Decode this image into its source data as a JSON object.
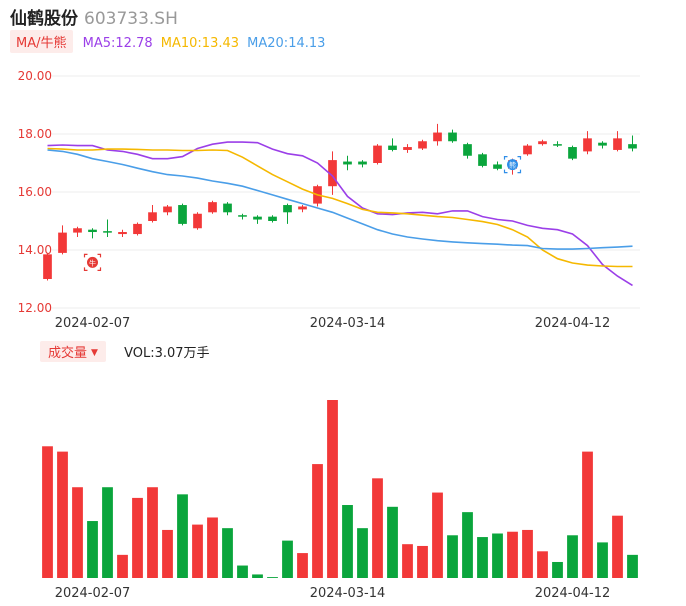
{
  "header": {
    "name": "仙鹤股份",
    "code": "603733.SH"
  },
  "ma_legend": {
    "toggle_label": "MA/牛熊",
    "items": [
      {
        "text": "MA5:12.78",
        "color": "#9b3fe8"
      },
      {
        "text": "MA10:13.43",
        "color": "#f5b800"
      },
      {
        "text": "MA20:14.13",
        "color": "#4a9ee8"
      }
    ]
  },
  "volume_legend": {
    "toggle_label": "成交量",
    "caret": "▼",
    "text": "VOL:3.07万手"
  },
  "colors": {
    "up": "#f23838",
    "down": "#0aa53c",
    "grid": "#eeeeee",
    "axis_text": "#e53935",
    "date_text": "#333333"
  },
  "markers": [
    {
      "icon": "red-seal-marker-icon",
      "label": "牛",
      "index": 3,
      "color": "#e53935"
    },
    {
      "icon": "blue-seal-marker-icon",
      "label": "熊",
      "index": 31,
      "color": "#2f8ee8"
    }
  ],
  "chart_data": {
    "type": "candlestick",
    "price_axis": {
      "ylim": [
        12,
        20
      ],
      "ticks": [
        "12.00",
        "14.00",
        "16.00",
        "18.00",
        "20.00"
      ]
    },
    "date_ticks": [
      {
        "label": "2024-02-07",
        "index": 3
      },
      {
        "label": "2024-03-14",
        "index": 20
      },
      {
        "label": "2024-04-12",
        "index": 35
      }
    ],
    "candles": [
      {
        "o": 13.0,
        "c": 13.85,
        "h": 13.9,
        "l": 12.95
      },
      {
        "o": 13.9,
        "c": 14.6,
        "h": 14.85,
        "l": 13.85
      },
      {
        "o": 14.6,
        "c": 14.75,
        "h": 14.8,
        "l": 14.45
      },
      {
        "o": 14.7,
        "c": 14.62,
        "h": 14.75,
        "l": 14.4
      },
      {
        "o": 14.65,
        "c": 14.62,
        "h": 15.05,
        "l": 14.45
      },
      {
        "o": 14.55,
        "c": 14.62,
        "h": 14.7,
        "l": 14.45
      },
      {
        "o": 14.55,
        "c": 14.9,
        "h": 14.95,
        "l": 14.5
      },
      {
        "o": 15.0,
        "c": 15.3,
        "h": 15.55,
        "l": 14.95
      },
      {
        "o": 15.3,
        "c": 15.5,
        "h": 15.55,
        "l": 15.2
      },
      {
        "o": 15.55,
        "c": 14.9,
        "h": 15.6,
        "l": 14.85
      },
      {
        "o": 14.75,
        "c": 15.25,
        "h": 15.3,
        "l": 14.7
      },
      {
        "o": 15.3,
        "c": 15.65,
        "h": 15.7,
        "l": 15.25
      },
      {
        "o": 15.6,
        "c": 15.3,
        "h": 15.65,
        "l": 15.2
      },
      {
        "o": 15.2,
        "c": 15.15,
        "h": 15.25,
        "l": 15.05
      },
      {
        "o": 15.15,
        "c": 15.05,
        "h": 15.2,
        "l": 14.9
      },
      {
        "o": 15.15,
        "c": 15.0,
        "h": 15.2,
        "l": 14.95
      },
      {
        "o": 15.55,
        "c": 15.3,
        "h": 15.6,
        "l": 14.9
      },
      {
        "o": 15.4,
        "c": 15.5,
        "h": 15.55,
        "l": 15.3
      },
      {
        "o": 15.6,
        "c": 16.2,
        "h": 16.25,
        "l": 15.5
      },
      {
        "o": 16.2,
        "c": 17.1,
        "h": 17.4,
        "l": 15.9
      },
      {
        "o": 17.05,
        "c": 16.95,
        "h": 17.25,
        "l": 16.75
      },
      {
        "o": 17.05,
        "c": 16.95,
        "h": 17.1,
        "l": 16.85
      },
      {
        "o": 17.0,
        "c": 17.6,
        "h": 17.65,
        "l": 16.95
      },
      {
        "o": 17.6,
        "c": 17.45,
        "h": 17.85,
        "l": 17.4
      },
      {
        "o": 17.45,
        "c": 17.55,
        "h": 17.65,
        "l": 17.35
      },
      {
        "o": 17.5,
        "c": 17.75,
        "h": 17.8,
        "l": 17.45
      },
      {
        "o": 17.75,
        "c": 18.05,
        "h": 18.35,
        "l": 17.6
      },
      {
        "o": 18.05,
        "c": 17.75,
        "h": 18.15,
        "l": 17.7
      },
      {
        "o": 17.65,
        "c": 17.25,
        "h": 17.7,
        "l": 17.15
      },
      {
        "o": 17.3,
        "c": 16.9,
        "h": 17.35,
        "l": 16.85
      },
      {
        "o": 16.95,
        "c": 16.8,
        "h": 17.05,
        "l": 16.75
      },
      {
        "o": 16.8,
        "c": 17.1,
        "h": 17.15,
        "l": 16.6
      },
      {
        "o": 17.3,
        "c": 17.6,
        "h": 17.65,
        "l": 17.25
      },
      {
        "o": 17.65,
        "c": 17.75,
        "h": 17.8,
        "l": 17.6
      },
      {
        "o": 17.65,
        "c": 17.6,
        "h": 17.75,
        "l": 17.55
      },
      {
        "o": 17.55,
        "c": 17.15,
        "h": 17.6,
        "l": 17.1
      },
      {
        "o": 17.4,
        "c": 17.85,
        "h": 18.1,
        "l": 17.3
      },
      {
        "o": 17.7,
        "c": 17.6,
        "h": 17.75,
        "l": 17.5
      },
      {
        "o": 17.45,
        "c": 17.85,
        "h": 18.1,
        "l": 17.4
      },
      {
        "o": 17.65,
        "c": 17.5,
        "h": 17.95,
        "l": 17.4
      }
    ],
    "ma_lines": [
      {
        "name": "MA5",
        "color": "#9b3fe8",
        "values": [
          17.6,
          17.62,
          17.6,
          17.6,
          17.45,
          17.4,
          17.3,
          17.15,
          17.15,
          17.22,
          17.5,
          17.65,
          17.72,
          17.72,
          17.7,
          17.48,
          17.32,
          17.25,
          17.0,
          16.55,
          15.85,
          15.45,
          15.25,
          15.22,
          15.28,
          15.3,
          15.25,
          15.35,
          15.35,
          15.15,
          15.05,
          15.0,
          14.85,
          14.75,
          14.7,
          14.55,
          14.15,
          13.5,
          13.1,
          12.78
        ]
      },
      {
        "name": "MA10",
        "color": "#f5b800",
        "values": [
          17.5,
          17.48,
          17.45,
          17.45,
          17.48,
          17.48,
          17.47,
          17.45,
          17.45,
          17.43,
          17.43,
          17.45,
          17.43,
          17.2,
          16.9,
          16.6,
          16.35,
          16.1,
          15.9,
          15.78,
          15.6,
          15.4,
          15.3,
          15.28,
          15.25,
          15.2,
          15.15,
          15.12,
          15.05,
          14.98,
          14.88,
          14.7,
          14.45,
          14.0,
          13.7,
          13.55,
          13.48,
          13.45,
          13.43,
          13.43
        ]
      },
      {
        "name": "MA20",
        "color": "#4a9ee8",
        "values": [
          17.45,
          17.4,
          17.3,
          17.15,
          17.05,
          16.95,
          16.82,
          16.7,
          16.6,
          16.55,
          16.48,
          16.38,
          16.3,
          16.2,
          16.05,
          15.9,
          15.75,
          15.6,
          15.45,
          15.3,
          15.1,
          14.9,
          14.7,
          14.55,
          14.45,
          14.38,
          14.32,
          14.28,
          14.25,
          14.22,
          14.2,
          14.17,
          14.15,
          14.05,
          14.03,
          14.03,
          14.05,
          14.08,
          14.1,
          14.13
        ]
      }
    ],
    "volume": {
      "ymax": 100,
      "values": [
        74,
        71,
        51,
        32,
        51,
        13,
        45,
        51,
        27,
        47,
        30,
        34,
        28,
        7,
        2,
        0.5,
        21,
        14,
        64,
        100,
        41,
        28,
        56,
        40,
        19,
        18,
        48,
        24,
        37,
        23,
        25,
        26,
        27,
        15,
        9,
        24,
        71,
        20,
        35,
        13
      ]
    }
  }
}
